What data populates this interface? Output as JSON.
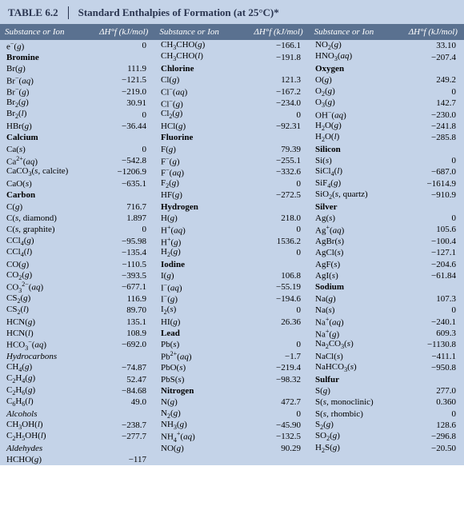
{
  "title_num": "TABLE 6.2",
  "title": "Standard Enthalpies of Formation (at 25°C)*",
  "header_sub": "Substance or Ion",
  "header_val": "ΔH°f (kJ/mol)",
  "bg": "#c4d3e8",
  "header_bg": "#5a7190",
  "cols": [
    [
      {
        "s": "e⁻(g)",
        "v": "0"
      },
      {
        "h": "Bromine"
      },
      {
        "s": "Br(g)",
        "v": "111.9"
      },
      {
        "s": "Br⁻(aq)",
        "v": "−121.5"
      },
      {
        "s": "Br⁻(g)",
        "v": "−219.0"
      },
      {
        "s": "Br₂(g)",
        "v": "30.91"
      },
      {
        "s": "Br₂(l)",
        "v": "0"
      },
      {
        "s": "HBr(g)",
        "v": "−36.44"
      },
      {
        "h": "Calcium"
      },
      {
        "s": "Ca(s)",
        "v": "0"
      },
      {
        "s": "Ca²⁺(aq)",
        "v": "−542.8"
      },
      {
        "s": "CaCO₃(s, calcite)",
        "v": "−1206.9"
      },
      {
        "s": "CaO(s)",
        "v": "−635.1"
      },
      {
        "h": "Carbon"
      },
      {
        "s": "C(g)",
        "v": "716.7"
      },
      {
        "s": "C(s, diamond)",
        "v": "1.897"
      },
      {
        "s": "C(s, graphite)",
        "v": "0"
      },
      {
        "s": "CCl₄(g)",
        "v": "−95.98"
      },
      {
        "s": "CCl₄(l)",
        "v": "−135.4"
      },
      {
        "s": "CO(g)",
        "v": "−110.5"
      },
      {
        "s": "CO₂(g)",
        "v": "−393.5"
      },
      {
        "s": "CO₃²⁻(aq)",
        "v": "−677.1"
      },
      {
        "s": "CS₂(g)",
        "v": "116.9"
      },
      {
        "s": "CS₂(l)",
        "v": "89.70"
      },
      {
        "s": "HCN(g)",
        "v": "135.1"
      },
      {
        "s": "HCN(l)",
        "v": "108.9"
      },
      {
        "s": "HCO₃⁻(aq)",
        "v": "−692.0"
      },
      {
        "i": "Hydrocarbons"
      },
      {
        "s": "CH₄(g)",
        "v": "−74.87"
      },
      {
        "s": "C₂H₄(g)",
        "v": "52.47"
      },
      {
        "s": "C₂H₆(g)",
        "v": "−84.68"
      },
      {
        "s": "C₆H₆(l)",
        "v": "49.0"
      },
      {
        "i": "Alcohols"
      },
      {
        "s": "CH₃OH(l)",
        "v": "−238.7"
      },
      {
        "s": "C₂H₅OH(l)",
        "v": "−277.7"
      },
      {
        "i": "Aldehydes"
      },
      {
        "s": "HCHO(g)",
        "v": "−117"
      }
    ],
    [
      {
        "s": "CH₃CHO(g)",
        "v": "−166.1"
      },
      {
        "s": "CH₃CHO(l)",
        "v": "−191.8"
      },
      {
        "h": "Chlorine"
      },
      {
        "s": "Cl(g)",
        "v": "121.3"
      },
      {
        "s": "Cl⁻(aq)",
        "v": "−167.2"
      },
      {
        "s": "Cl⁻(g)",
        "v": "−234.0"
      },
      {
        "s": "Cl₂(g)",
        "v": "0"
      },
      {
        "s": "HCl(g)",
        "v": "−92.31"
      },
      {
        "h": "Fluorine"
      },
      {
        "s": "F(g)",
        "v": "79.39"
      },
      {
        "s": "F⁻(g)",
        "v": "−255.1"
      },
      {
        "s": "F⁻(aq)",
        "v": "−332.6"
      },
      {
        "s": "F₂(g)",
        "v": "0"
      },
      {
        "s": "HF(g)",
        "v": "−272.5"
      },
      {
        "h": "Hydrogen"
      },
      {
        "s": "H(g)",
        "v": "218.0"
      },
      {
        "s": "H⁺(aq)",
        "v": "0"
      },
      {
        "s": "H⁺(g)",
        "v": "1536.2"
      },
      {
        "s": "H₂(g)",
        "v": "0"
      },
      {
        "h": "Iodine"
      },
      {
        "s": "I(g)",
        "v": "106.8"
      },
      {
        "s": "I⁻(aq)",
        "v": "−55.19"
      },
      {
        "s": "I⁻(g)",
        "v": "−194.6"
      },
      {
        "s": "I₂(s)",
        "v": "0"
      },
      {
        "s": "HI(g)",
        "v": "26.36"
      },
      {
        "h": "Lead"
      },
      {
        "s": "Pb(s)",
        "v": "0"
      },
      {
        "s": "Pb²⁺(aq)",
        "v": "−1.7"
      },
      {
        "s": "PbO(s)",
        "v": "−219.4"
      },
      {
        "s": "PbS(s)",
        "v": "−98.32"
      },
      {
        "h": "Nitrogen"
      },
      {
        "s": "N(g)",
        "v": "472.7"
      },
      {
        "s": "N₂(g)",
        "v": "0"
      },
      {
        "s": "NH₃(g)",
        "v": "−45.90"
      },
      {
        "s": "NH₄⁺(aq)",
        "v": "−132.5"
      },
      {
        "s": "NO(g)",
        "v": "90.29"
      }
    ],
    [
      {
        "s": "NO₂(g)",
        "v": "33.10"
      },
      {
        "s": "HNO₃(aq)",
        "v": "−207.4"
      },
      {
        "h": "Oxygen"
      },
      {
        "s": "O(g)",
        "v": "249.2"
      },
      {
        "s": "O₂(g)",
        "v": "0"
      },
      {
        "s": "O₃(g)",
        "v": "142.7"
      },
      {
        "s": "OH⁻(aq)",
        "v": "−230.0"
      },
      {
        "s": "H₂O(g)",
        "v": "−241.8"
      },
      {
        "s": "H₂O(l)",
        "v": "−285.8"
      },
      {
        "h": "Silicon"
      },
      {
        "s": "Si(s)",
        "v": "0"
      },
      {
        "s": "SiCl₄(l)",
        "v": "−687.0"
      },
      {
        "s": "SiF₄(g)",
        "v": "−1614.9"
      },
      {
        "s": "SiO₂(s, quartz)",
        "v": "−910.9"
      },
      {
        "h": "Silver"
      },
      {
        "s": "Ag(s)",
        "v": "0"
      },
      {
        "s": "Ag⁺(aq)",
        "v": "105.6"
      },
      {
        "s": "AgBr(s)",
        "v": "−100.4"
      },
      {
        "s": "AgCl(s)",
        "v": "−127.1"
      },
      {
        "s": "AgF(s)",
        "v": "−204.6"
      },
      {
        "s": "AgI(s)",
        "v": "−61.84"
      },
      {
        "h": "Sodium"
      },
      {
        "s": "Na(g)",
        "v": "107.3"
      },
      {
        "s": "Na(s)",
        "v": "0"
      },
      {
        "s": "Na⁺(aq)",
        "v": "−240.1"
      },
      {
        "s": "Na⁺(g)",
        "v": "609.3"
      },
      {
        "s": "Na₂CO₃(s)",
        "v": "−1130.8"
      },
      {
        "s": "NaCl(s)",
        "v": "−411.1"
      },
      {
        "s": "NaHCO₃(s)",
        "v": "−950.8"
      },
      {
        "h": "Sulfur"
      },
      {
        "s": "S(g)",
        "v": "277.0"
      },
      {
        "s": "S(s, monoclinic)",
        "v": "0.360"
      },
      {
        "s": "S(s, rhombic)",
        "v": "0"
      },
      {
        "s": "S₂(g)",
        "v": "128.6"
      },
      {
        "s": "SO₂(g)",
        "v": "−296.8"
      },
      {
        "s": "H₂S(g)",
        "v": "−20.50"
      }
    ]
  ]
}
